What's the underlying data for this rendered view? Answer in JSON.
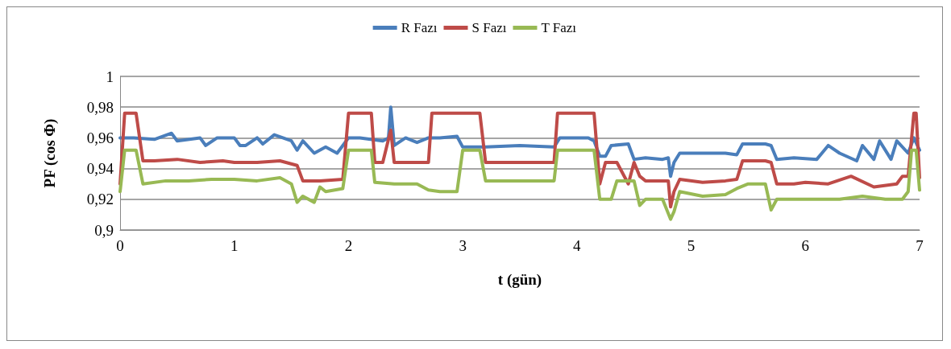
{
  "chart_data": {
    "type": "line",
    "xlabel": "t (gün)",
    "ylabel": "PF (cos Φ)",
    "xlim": [
      0,
      7
    ],
    "xticks": [
      0,
      1,
      2,
      3,
      4,
      5,
      6,
      7
    ],
    "ylim": [
      0.9,
      1
    ],
    "yticks": [
      {
        "value": 0.9,
        "label": "0,9"
      },
      {
        "value": 0.92,
        "label": "0,92"
      },
      {
        "value": 0.94,
        "label": "0,94"
      },
      {
        "value": 0.96,
        "label": "0,96"
      },
      {
        "value": 0.98,
        "label": "0,98"
      },
      {
        "value": 1,
        "label": "1"
      }
    ],
    "grid": "y",
    "legend": "top",
    "marker": "none",
    "line_style": "solid",
    "series": [
      {
        "name": "R Fazı",
        "color": "#4a7ebb",
        "x": [
          0,
          0.12,
          0.3,
          0.45,
          0.5,
          0.7,
          0.75,
          0.85,
          1.0,
          1.05,
          1.1,
          1.2,
          1.25,
          1.35,
          1.5,
          1.55,
          1.6,
          1.7,
          1.8,
          1.9,
          1.95,
          2.0,
          2.1,
          2.3,
          2.35,
          2.37,
          2.4,
          2.5,
          2.6,
          2.7,
          2.8,
          2.95,
          3.0,
          3.2,
          3.5,
          3.8,
          3.85,
          4.1,
          4.15,
          4.2,
          4.25,
          4.3,
          4.45,
          4.5,
          4.6,
          4.75,
          4.8,
          4.82,
          4.85,
          4.9,
          5.1,
          5.3,
          5.4,
          5.45,
          5.65,
          5.7,
          5.75,
          5.9,
          6.1,
          6.2,
          6.3,
          6.45,
          6.5,
          6.6,
          6.65,
          6.75,
          6.8,
          6.9,
          6.95,
          7
        ],
        "values": [
          0.96,
          0.96,
          0.959,
          0.963,
          0.958,
          0.96,
          0.955,
          0.96,
          0.96,
          0.955,
          0.955,
          0.96,
          0.956,
          0.962,
          0.958,
          0.952,
          0.958,
          0.95,
          0.954,
          0.95,
          0.955,
          0.96,
          0.96,
          0.958,
          0.96,
          0.98,
          0.955,
          0.96,
          0.957,
          0.96,
          0.96,
          0.961,
          0.954,
          0.954,
          0.955,
          0.954,
          0.96,
          0.96,
          0.958,
          0.948,
          0.948,
          0.955,
          0.956,
          0.946,
          0.947,
          0.946,
          0.947,
          0.935,
          0.944,
          0.95,
          0.95,
          0.95,
          0.949,
          0.956,
          0.956,
          0.955,
          0.946,
          0.947,
          0.946,
          0.955,
          0.95,
          0.945,
          0.955,
          0.946,
          0.958,
          0.946,
          0.958,
          0.95,
          0.96,
          0.952
        ]
      },
      {
        "name": "S Fazı",
        "color": "#be4b48",
        "x": [
          0,
          0.04,
          0.14,
          0.2,
          0.3,
          0.5,
          0.7,
          0.9,
          1.0,
          1.2,
          1.4,
          1.55,
          1.6,
          1.75,
          1.95,
          2.0,
          2.2,
          2.23,
          2.3,
          2.37,
          2.4,
          2.6,
          2.7,
          2.73,
          2.8,
          3.0,
          3.15,
          3.2,
          3.4,
          3.6,
          3.8,
          3.83,
          4.0,
          4.15,
          4.2,
          4.25,
          4.35,
          4.45,
          4.5,
          4.55,
          4.6,
          4.8,
          4.82,
          4.85,
          4.9,
          5.1,
          5.3,
          5.4,
          5.45,
          5.65,
          5.7,
          5.75,
          5.9,
          6.0,
          6.2,
          6.4,
          6.6,
          6.8,
          6.85,
          6.9,
          6.95,
          6.97,
          7
        ],
        "values": [
          0.93,
          0.976,
          0.976,
          0.945,
          0.945,
          0.946,
          0.944,
          0.945,
          0.944,
          0.944,
          0.945,
          0.942,
          0.932,
          0.932,
          0.933,
          0.976,
          0.976,
          0.944,
          0.944,
          0.965,
          0.944,
          0.944,
          0.944,
          0.976,
          0.976,
          0.976,
          0.976,
          0.944,
          0.944,
          0.944,
          0.944,
          0.976,
          0.976,
          0.976,
          0.93,
          0.944,
          0.944,
          0.93,
          0.944,
          0.935,
          0.932,
          0.932,
          0.915,
          0.925,
          0.933,
          0.931,
          0.932,
          0.933,
          0.945,
          0.945,
          0.944,
          0.93,
          0.93,
          0.931,
          0.93,
          0.935,
          0.928,
          0.93,
          0.935,
          0.935,
          0.976,
          0.976,
          0.934
        ]
      },
      {
        "name": "T Fazı",
        "color": "#98b954",
        "x": [
          0,
          0.04,
          0.14,
          0.2,
          0.4,
          0.6,
          0.8,
          1.0,
          1.2,
          1.4,
          1.5,
          1.55,
          1.6,
          1.7,
          1.75,
          1.8,
          1.95,
          2.0,
          2.2,
          2.23,
          2.4,
          2.6,
          2.7,
          2.8,
          2.9,
          2.95,
          3.0,
          3.15,
          3.2,
          3.4,
          3.6,
          3.8,
          3.83,
          4.1,
          4.15,
          4.2,
          4.3,
          4.35,
          4.5,
          4.55,
          4.6,
          4.75,
          4.82,
          4.85,
          4.9,
          5.1,
          5.3,
          5.4,
          5.5,
          5.65,
          5.7,
          5.75,
          5.9,
          6.1,
          6.3,
          6.5,
          6.7,
          6.85,
          6.9,
          6.93,
          6.97,
          7
        ],
        "values": [
          0.925,
          0.952,
          0.952,
          0.93,
          0.932,
          0.932,
          0.933,
          0.933,
          0.932,
          0.934,
          0.93,
          0.918,
          0.922,
          0.918,
          0.928,
          0.925,
          0.927,
          0.952,
          0.952,
          0.931,
          0.93,
          0.93,
          0.926,
          0.925,
          0.925,
          0.925,
          0.952,
          0.952,
          0.932,
          0.932,
          0.932,
          0.932,
          0.952,
          0.952,
          0.952,
          0.92,
          0.92,
          0.932,
          0.932,
          0.916,
          0.92,
          0.92,
          0.907,
          0.912,
          0.925,
          0.922,
          0.923,
          0.927,
          0.93,
          0.93,
          0.913,
          0.92,
          0.92,
          0.92,
          0.92,
          0.922,
          0.92,
          0.92,
          0.925,
          0.952,
          0.952,
          0.926
        ]
      }
    ]
  }
}
